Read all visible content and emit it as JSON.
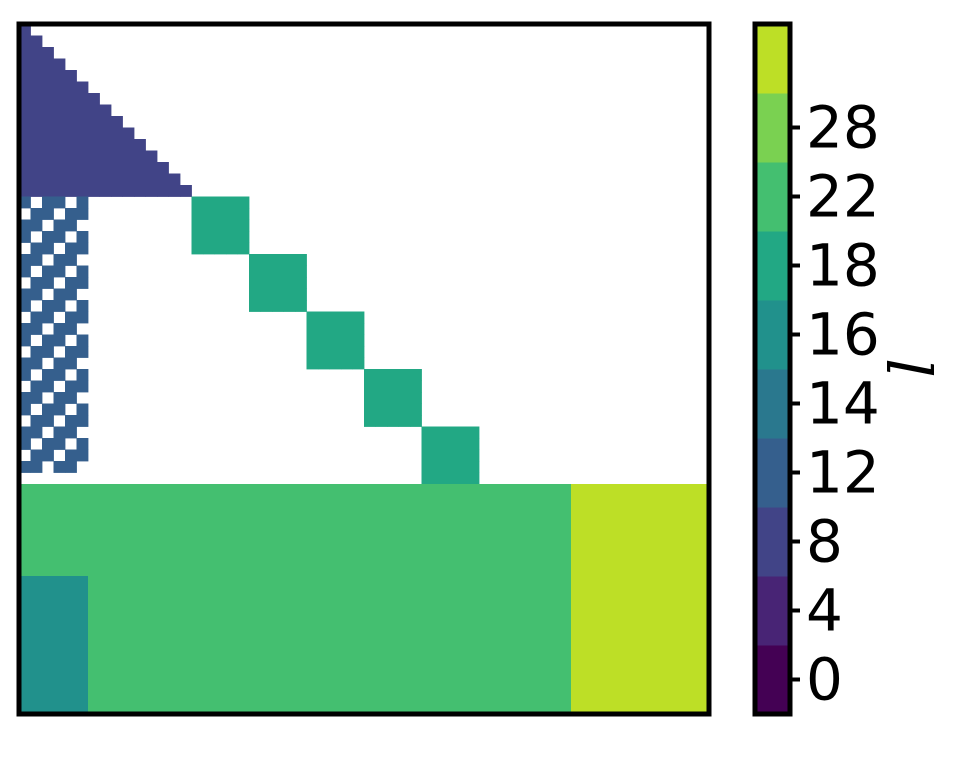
{
  "chart_data": {
    "type": "heatmap",
    "title": "",
    "xlabel": "",
    "ylabel": "",
    "grid": false,
    "colorbar": {
      "label": "l",
      "ticks": [
        "0",
        "4",
        "8",
        "12",
        "14",
        "16",
        "18",
        "22",
        "28"
      ],
      "colors": [
        "#440154",
        "#482475",
        "#414487",
        "#355f8d",
        "#2a788e",
        "#21918c",
        "#22a884",
        "#44bf70",
        "#7ad151",
        "#bddf26"
      ]
    },
    "regions": [
      {
        "name": "diagonal-chain",
        "value": 8,
        "x": [
          0,
          14
        ],
        "y": [
          0,
          14
        ]
      },
      {
        "name": "left-column-block",
        "value": 12,
        "x": [
          0,
          5
        ],
        "y": [
          15,
          38
        ]
      },
      {
        "name": "block-1",
        "value": 18,
        "x": [
          15,
          19
        ],
        "y": [
          15,
          19
        ]
      },
      {
        "name": "block-2",
        "value": 18,
        "x": [
          20,
          24
        ],
        "y": [
          20,
          24
        ]
      },
      {
        "name": "block-3",
        "value": 18,
        "x": [
          25,
          29
        ],
        "y": [
          25,
          29
        ]
      },
      {
        "name": "block-4",
        "value": 18,
        "x": [
          30,
          34
        ],
        "y": [
          30,
          34
        ]
      },
      {
        "name": "block-5",
        "value": 18,
        "x": [
          35,
          39
        ],
        "y": [
          35,
          39
        ]
      },
      {
        "name": "lower-band",
        "value": 22,
        "x": [
          0,
          59
        ],
        "y": [
          40,
          59
        ]
      },
      {
        "name": "lower-left-block",
        "value": 16,
        "x": [
          0,
          5
        ],
        "y": [
          48,
          59
        ]
      },
      {
        "name": "lower-right-block",
        "value": 28,
        "x": [
          48,
          59
        ],
        "y": [
          40,
          59
        ]
      }
    ]
  }
}
